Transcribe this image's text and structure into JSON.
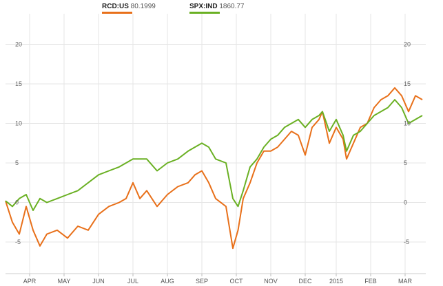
{
  "legend": {
    "s1_symbol": "RCD:US",
    "s1_value": "80.1999",
    "s2_symbol": "SPX:IND",
    "s2_value": "1860.77"
  },
  "chart_data": {
    "type": "line",
    "title": "",
    "xlabel": "",
    "ylabel": "",
    "ylim": [
      -9,
      23
    ],
    "y_ticks": [
      20,
      15,
      10,
      5,
      0,
      -5
    ],
    "x_ticks": [
      "APR",
      "MAY",
      "JUN",
      "JUL",
      "AUG",
      "SEP",
      "OCT",
      "NOV",
      "DEC",
      "2015",
      "FEB",
      "MAR"
    ],
    "x_tick_months": [
      0.7,
      1.7,
      2.7,
      3.7,
      4.7,
      5.7,
      6.7,
      7.7,
      8.7,
      9.6,
      10.6,
      11.6
    ],
    "xlim": [
      0,
      12.2
    ],
    "grid": true,
    "series": [
      {
        "name": "RCD:US",
        "color": "#e8701a",
        "x": [
          0,
          0.2,
          0.4,
          0.6,
          0.8,
          1.0,
          1.2,
          1.5,
          1.8,
          2.1,
          2.4,
          2.7,
          3.0,
          3.3,
          3.5,
          3.7,
          3.9,
          4.1,
          4.4,
          4.7,
          5.0,
          5.3,
          5.5,
          5.7,
          5.9,
          6.1,
          6.4,
          6.6,
          6.75,
          6.9,
          7.1,
          7.3,
          7.5,
          7.7,
          7.9,
          8.1,
          8.3,
          8.5,
          8.7,
          8.9,
          9.1,
          9.2,
          9.4,
          9.6,
          9.8,
          9.9,
          10.1,
          10.3,
          10.5,
          10.7,
          10.9,
          11.1,
          11.3,
          11.5,
          11.7,
          11.9,
          12.1
        ],
        "y": [
          0.2,
          -2.5,
          -4.0,
          -0.5,
          -3.5,
          -5.5,
          -4.0,
          -3.5,
          -4.5,
          -3.0,
          -3.5,
          -1.5,
          -0.5,
          0,
          0.5,
          2.5,
          0.5,
          1.5,
          -0.5,
          1.0,
          2.0,
          2.5,
          3.5,
          4.0,
          2.5,
          0.5,
          -0.5,
          -5.8,
          -3.5,
          0.5,
          2.5,
          5.0,
          6.5,
          6.5,
          7.0,
          8.0,
          9.0,
          8.5,
          6.0,
          9.5,
          10.5,
          11.5,
          7.5,
          9.5,
          8.0,
          5.5,
          7.5,
          9.5,
          10.0,
          12.0,
          13.0,
          13.5,
          14.5,
          13.5,
          11.5,
          13.5,
          13.0
        ]
      },
      {
        "name": "SPX:IND",
        "color": "#6ab023",
        "x": [
          0,
          0.2,
          0.4,
          0.6,
          0.8,
          1.0,
          1.2,
          1.5,
          1.8,
          2.1,
          2.4,
          2.7,
          3.0,
          3.3,
          3.5,
          3.7,
          3.9,
          4.1,
          4.4,
          4.7,
          5.0,
          5.3,
          5.5,
          5.7,
          5.9,
          6.1,
          6.4,
          6.6,
          6.75,
          6.9,
          7.1,
          7.3,
          7.5,
          7.7,
          7.9,
          8.1,
          8.3,
          8.5,
          8.7,
          8.9,
          9.1,
          9.2,
          9.4,
          9.6,
          9.8,
          9.9,
          10.1,
          10.3,
          10.5,
          10.7,
          10.9,
          11.1,
          11.3,
          11.5,
          11.7,
          11.9,
          12.1
        ],
        "y": [
          0.2,
          -0.5,
          0.5,
          1.0,
          -1.0,
          0.5,
          0.0,
          0.5,
          1.0,
          1.5,
          2.5,
          3.5,
          4.0,
          4.5,
          5.0,
          5.5,
          5.5,
          5.5,
          4.0,
          5.0,
          5.5,
          6.5,
          7.0,
          7.5,
          7.0,
          5.5,
          5.0,
          0.5,
          -0.5,
          1.5,
          4.5,
          5.5,
          7.0,
          8.0,
          8.5,
          9.5,
          10.0,
          10.5,
          9.5,
          10.5,
          11.0,
          11.5,
          9.0,
          10.5,
          8.5,
          6.5,
          8.5,
          9.0,
          10.0,
          11.0,
          11.5,
          12.0,
          13.0,
          12.0,
          10.0,
          10.5,
          11.0
        ]
      }
    ]
  }
}
